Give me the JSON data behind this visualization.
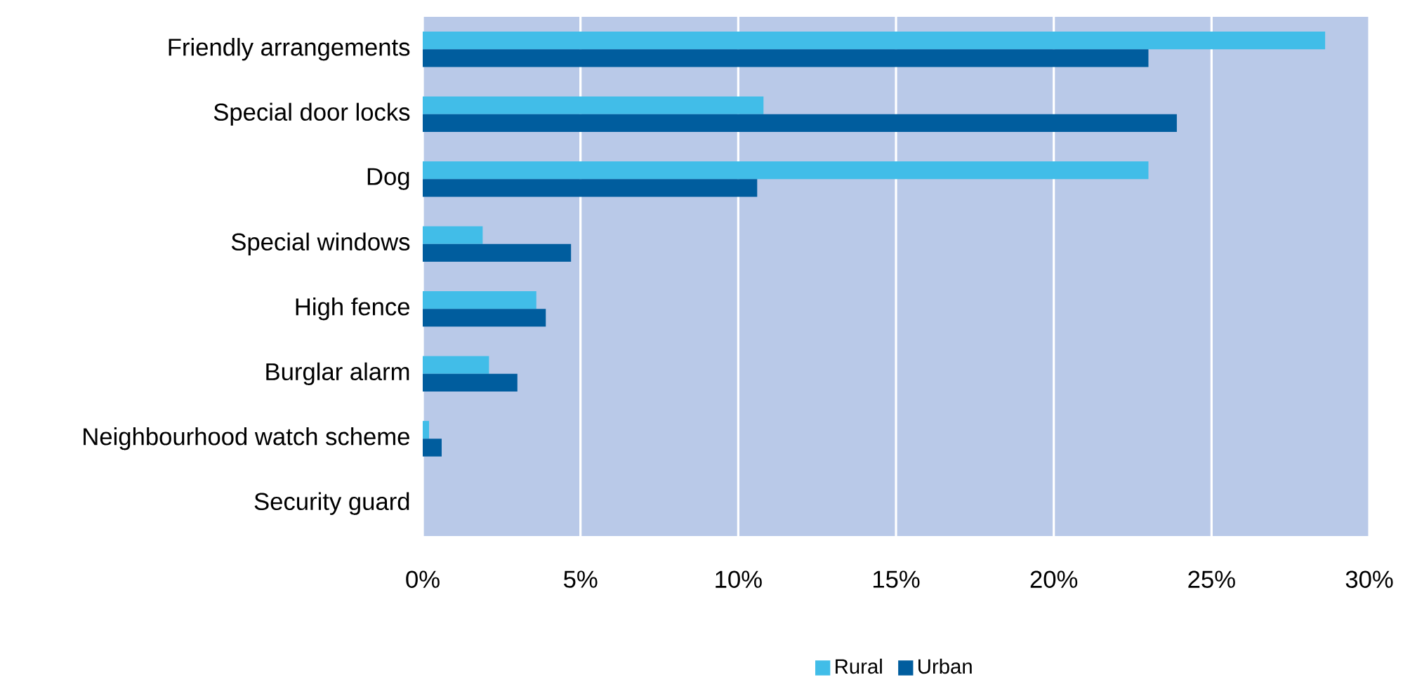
{
  "chart_data": {
    "type": "bar",
    "orientation": "horizontal",
    "categories": [
      "Friendly arrangements",
      "Special door locks",
      "Dog",
      "Special windows",
      "High fence",
      "Burglar alarm",
      "Neighbourhood watch scheme",
      "Security guard"
    ],
    "series": [
      {
        "name": "Rural",
        "color": "#41bde8",
        "values": [
          28.6,
          10.8,
          23.0,
          1.9,
          3.6,
          2.1,
          0.2,
          0
        ]
      },
      {
        "name": "Urban",
        "color": "#005d9e",
        "values": [
          23.0,
          23.9,
          10.6,
          4.7,
          3.9,
          3.0,
          0.6,
          0
        ]
      }
    ],
    "xlim": [
      0,
      30
    ],
    "xticks": [
      {
        "value": 0,
        "label": "0%"
      },
      {
        "value": 5,
        "label": "5%"
      },
      {
        "value": 10,
        "label": "10%"
      },
      {
        "value": 15,
        "label": "15%"
      },
      {
        "value": 20,
        "label": "20%"
      },
      {
        "value": 25,
        "label": "25%"
      },
      {
        "value": 30,
        "label": "30%"
      }
    ],
    "grid": "x",
    "legend": "bottom"
  }
}
